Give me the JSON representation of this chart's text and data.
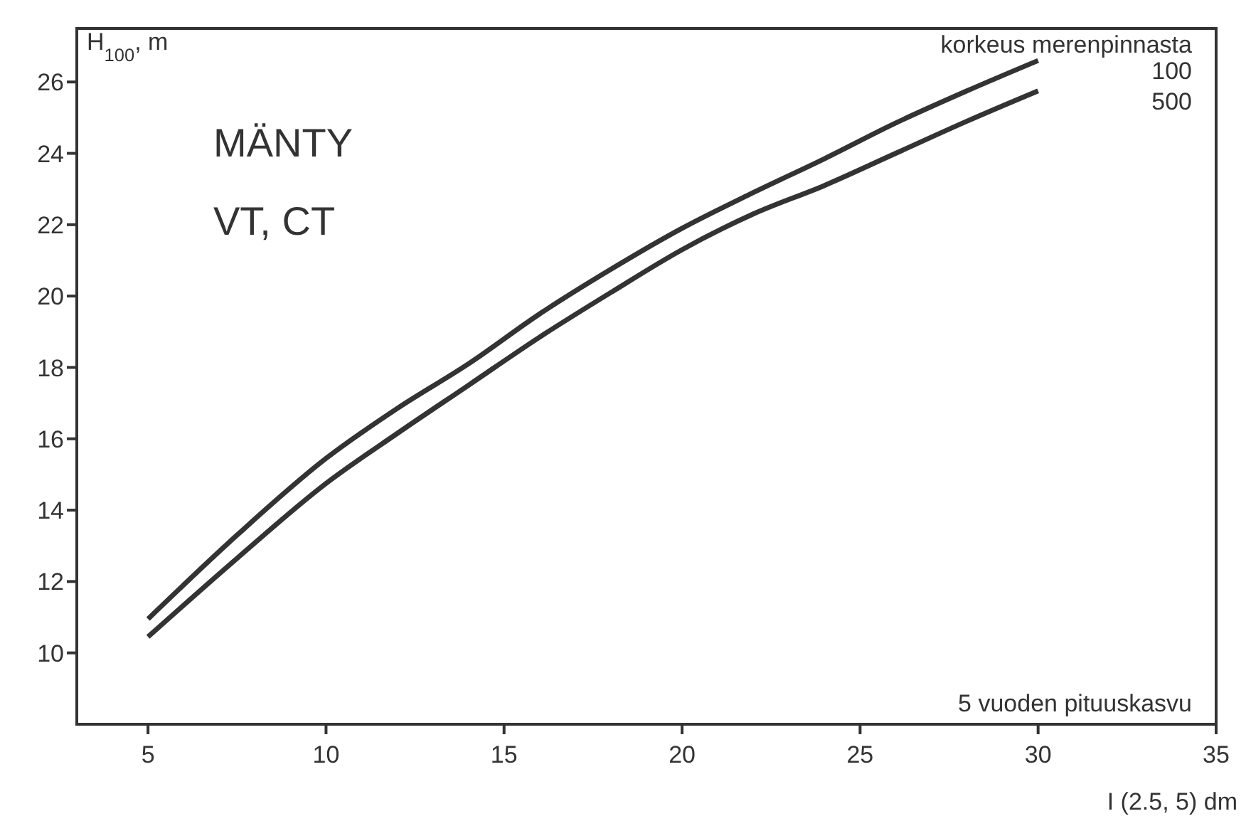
{
  "chart_data": {
    "type": "line",
    "ylabel": "H$_{100}$, m",
    "xlabel": "I (2.5, 5) dm",
    "legend_title": "korkeus merenpinnasta",
    "annotations": [
      "MÄNTY",
      "VT, CT",
      "5 vuoden pituuskasvu"
    ],
    "x": [
      5,
      7.5,
      10,
      12,
      14,
      16,
      18,
      20,
      22,
      24,
      26,
      28,
      30
    ],
    "series": [
      {
        "name": "100",
        "color": "#333333",
        "values": [
          10.95,
          13.3,
          15.45,
          16.85,
          18.1,
          19.5,
          20.75,
          21.9,
          22.9,
          23.85,
          24.85,
          25.75,
          26.6
        ]
      },
      {
        "name": "500",
        "color": "#333333",
        "values": [
          10.45,
          12.65,
          14.75,
          16.15,
          17.5,
          18.85,
          20.1,
          21.3,
          22.3,
          23.1,
          24.0,
          24.9,
          25.75
        ]
      }
    ],
    "xlim": [
      3,
      35
    ],
    "xticks": [
      5,
      10,
      15,
      20,
      25,
      30,
      35
    ],
    "ylim": [
      8,
      27.5
    ],
    "yticks": [
      10,
      12,
      14,
      16,
      18,
      20,
      22,
      24,
      26
    ],
    "line_style": "solid"
  }
}
